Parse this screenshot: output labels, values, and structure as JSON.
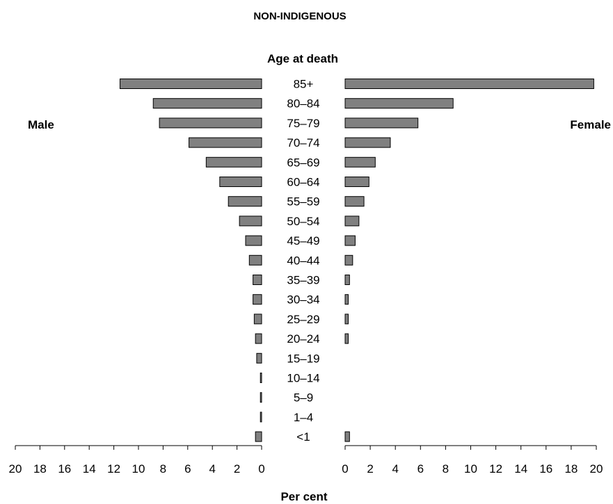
{
  "chart_data": {
    "type": "bar",
    "title": "NON-INDIGENOUS",
    "category_axis_label": "Age at death",
    "xlabel": "Per cent",
    "left_label": "Male",
    "right_label": "Female",
    "categories": [
      "85+",
      "80–84",
      "75–79",
      "70–74",
      "65–69",
      "60–64",
      "55–59",
      "50–54",
      "45–49",
      "40–44",
      "35–39",
      "30–34",
      "25–29",
      "20–24",
      "15–19",
      "10–14",
      "5–9",
      "1–4",
      "<1"
    ],
    "series": [
      {
        "name": "Male",
        "values": [
          11.5,
          8.8,
          8.3,
          5.9,
          4.5,
          3.4,
          2.7,
          1.8,
          1.3,
          1.0,
          0.7,
          0.7,
          0.6,
          0.5,
          0.4,
          0.1,
          0.1,
          0.1,
          0.5
        ]
      },
      {
        "name": "Female",
        "values": [
          19.8,
          8.6,
          5.8,
          3.6,
          2.4,
          1.9,
          1.5,
          1.1,
          0.8,
          0.6,
          0.35,
          0.25,
          0.25,
          0.25,
          0.0,
          0.0,
          0.0,
          0.0,
          0.35
        ]
      }
    ],
    "xlim": [
      0,
      20
    ],
    "xticks": [
      "0",
      "2",
      "4",
      "6",
      "8",
      "10",
      "12",
      "14",
      "16",
      "18",
      "20"
    ],
    "grid": false,
    "legend": "none"
  }
}
